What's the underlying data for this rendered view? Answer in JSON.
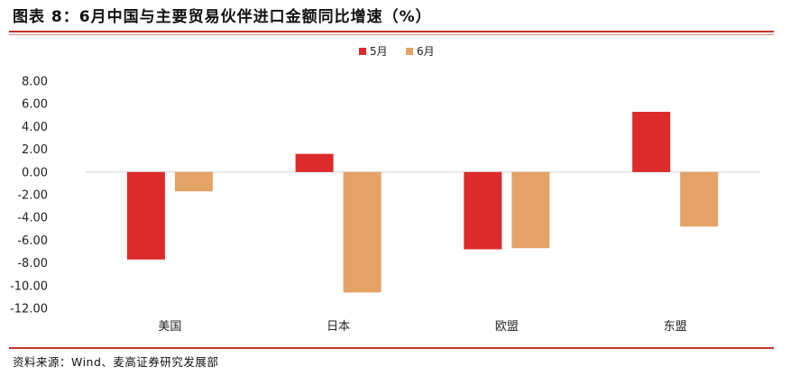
{
  "title": "图表 8：6月中国与主要贸易伙伴进口金额同比增速（%）",
  "source": "资料来源：Wind、麦高证券研究发展部",
  "colors": {
    "may": "#dd2a2a",
    "june": "#e4a266",
    "rule": "#c0332b"
  },
  "chart_data": {
    "type": "bar",
    "categories": [
      "美国",
      "日本",
      "欧盟",
      "东盟"
    ],
    "series": [
      {
        "name": "5月",
        "values": [
          -7.7,
          1.6,
          -6.8,
          5.3
        ]
      },
      {
        "name": "6月",
        "values": [
          -1.7,
          -10.6,
          -6.7,
          -4.8
        ]
      }
    ],
    "ylim": [
      -12,
      8
    ],
    "yticks": [
      "8.00",
      "6.00",
      "4.00",
      "2.00",
      "0.00",
      "-2.00",
      "-4.00",
      "-6.00",
      "-8.00",
      "-10.00",
      "-12.00"
    ],
    "grid": false,
    "legend": "top-center"
  }
}
